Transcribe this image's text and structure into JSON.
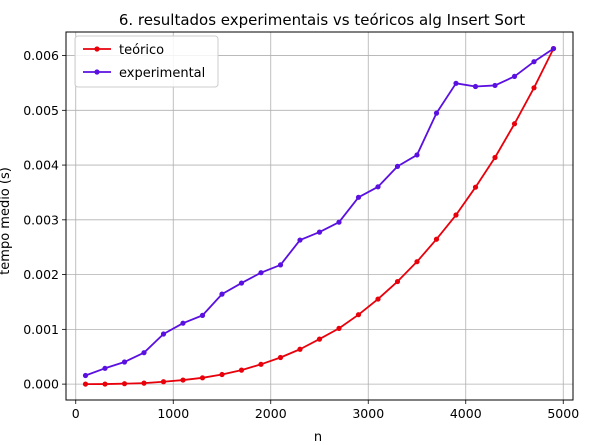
{
  "chart_data": {
    "type": "line",
    "title": "6. resultados experimentais vs teóricos alg Insert Sort",
    "xlabel": "n",
    "ylabel": "tempo medio (s)",
    "xlim": [
      -100,
      5100
    ],
    "ylim": [
      -0.00029,
      0.00643
    ],
    "x_ticks": [
      0,
      1000,
      2000,
      3000,
      4000,
      5000
    ],
    "y_ticks": [
      0.0,
      0.001,
      0.002,
      0.003,
      0.004,
      0.005,
      0.006
    ],
    "y_tick_labels": [
      "0.000",
      "0.001",
      "0.002",
      "0.003",
      "0.004",
      "0.005",
      "0.006"
    ],
    "grid": true,
    "legend_position": "top-left",
    "x": [
      100,
      300,
      500,
      700,
      900,
      1100,
      1300,
      1500,
      1700,
      1900,
      2100,
      2300,
      2500,
      2700,
      2900,
      3100,
      3300,
      3500,
      3700,
      3900,
      4100,
      4300,
      4500,
      4700,
      4900
    ],
    "series": [
      {
        "name": "teórico",
        "color": "#e8000b",
        "values": [
          5e-07,
          1.4e-06,
          8e-06,
          1.8e-05,
          4.3e-05,
          7.4e-05,
          0.000115,
          0.000175,
          0.000256,
          0.000362,
          0.000486,
          0.000637,
          0.000822,
          0.001018,
          0.001268,
          0.001553,
          0.001873,
          0.002236,
          0.002646,
          0.003088,
          0.003596,
          0.004138,
          0.004754,
          0.005411,
          0.006127
        ]
      },
      {
        "name": "experimental",
        "color": "#5a10e0",
        "values": [
          0.000157,
          0.000289,
          0.000404,
          0.000574,
          0.000915,
          0.001113,
          0.001255,
          0.001643,
          0.001845,
          0.002035,
          0.002177,
          0.002631,
          0.002776,
          0.002957,
          0.003411,
          0.003603,
          0.003976,
          0.004185,
          0.004949,
          0.005493,
          0.005435,
          0.005454,
          0.005619,
          0.005888,
          0.006127
        ]
      }
    ]
  }
}
